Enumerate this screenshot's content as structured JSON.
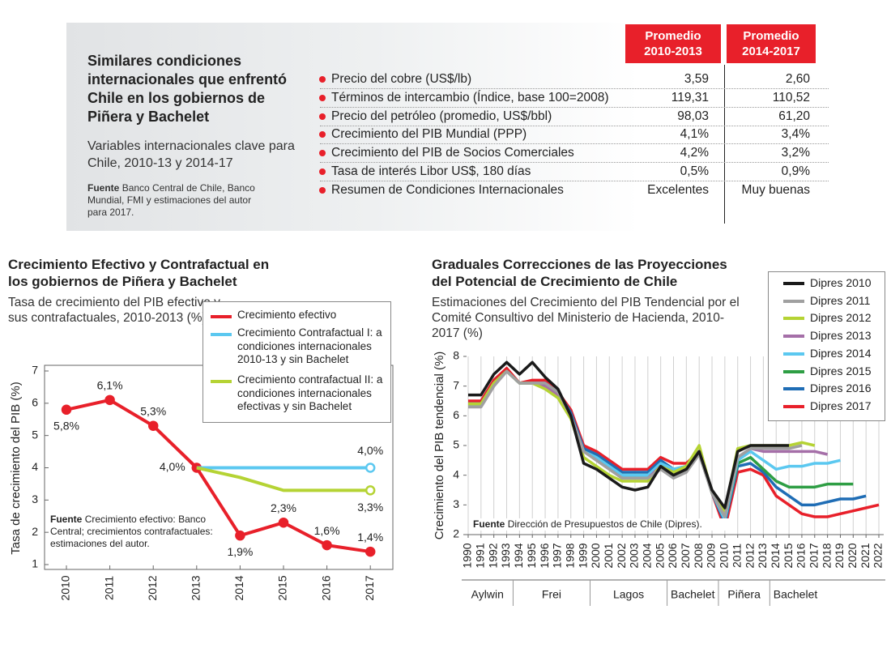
{
  "header": {
    "title": "Similares condiciones internacionales que enfrentó Chile en los gobiernos de Piñera y Bachelet",
    "subtitle": "Variables internacionales clave para Chile, 2010-13 y 2014-17",
    "source_label": "Fuente",
    "source": "Banco Central de Chile, Banco Mundial, FMI y estimaciones del autor para 2017."
  },
  "table": {
    "columns": [
      "Promedio 2010-2013",
      "Promedio 2014-2017"
    ],
    "rows": [
      [
        "Precio del cobre (US$/lb)",
        "3,59",
        "2,60"
      ],
      [
        "Términos de intercambio (Índice, base 100=2008)",
        "119,31",
        "110,52"
      ],
      [
        "Precio del petróleo (promedio, US$/bbl)",
        "98,03",
        "61,20"
      ],
      [
        "Crecimiento del PIB Mundial (PPP)",
        "4,1%",
        "3,4%"
      ],
      [
        "Crecimiento del PIB de Socios Comerciales",
        "4,2%",
        "3,2%"
      ],
      [
        "Tasa de interés Libor US$, 180 días",
        "0,5%",
        "0,9%"
      ],
      [
        "Resumen de Condiciones Internacionales",
        "Excelentes",
        "Muy buenas"
      ]
    ]
  },
  "chart_data": [
    {
      "type": "line",
      "title": "Crecimiento Efectivo y Contrafactual en los gobiernos de Piñera y Bachelet",
      "subtitle": "Tasa de crecimiento del PIB efectivo y sus contrafactuales, 2010-2013 (%)",
      "y_label": "Tasa de crecimiento del PIB (%)",
      "annotation_label": "Fuente",
      "annotation": "Crecimiento efectivo: Banco Central; crecimientos contrafactuales: estimaciones del autor.",
      "categories": [
        "2010",
        "2011",
        "2012",
        "2013",
        "2014",
        "2015",
        "2016",
        "2017"
      ],
      "ylim": [
        1,
        7
      ],
      "yticks": [
        1,
        2,
        3,
        4,
        5,
        6,
        7
      ],
      "grid": false,
      "series": [
        {
          "name": "Crecimiento efectivo",
          "color": "#e8202a",
          "marker": "all",
          "values": [
            5.8,
            6.1,
            5.3,
            4.0,
            1.9,
            2.3,
            1.6,
            1.4
          ],
          "value_labels": [
            "5,8%",
            "6,1%",
            "5,3%",
            "4,0%",
            "1,9%",
            "2,3%",
            "1,6%",
            "1,4%"
          ]
        },
        {
          "name": "Crecimiento Contrafactual I: a condiciones internacionales 2010-13 y sin Bachelet",
          "color": "#5bc8f0",
          "marker": "last",
          "values": [
            null,
            null,
            null,
            4.0,
            4.0,
            4.0,
            4.0,
            4.0
          ],
          "value_labels": [
            null,
            null,
            null,
            null,
            null,
            null,
            null,
            "4,0%"
          ]
        },
        {
          "name": "Crecimiento contrafactual II: a condiciones internacionales efectivas y sin Bachelet",
          "color": "#b5d334",
          "marker": "last",
          "values": [
            null,
            null,
            null,
            4.0,
            3.7,
            3.3,
            3.3,
            3.3
          ],
          "value_labels": [
            null,
            null,
            null,
            null,
            null,
            null,
            null,
            "3,3%"
          ]
        }
      ]
    },
    {
      "type": "line",
      "title": "Graduales Correcciones de las Proyecciones del Potencial de Crecimiento de Chile",
      "subtitle": "Estimaciones del Crecimiento del PIB Tendencial por el Comité Consultivo del Ministerio de Hacienda, 2010-2017 (%)",
      "y_label": "Crecimiento del PIB tendencial (%)",
      "annotation_label": "Fuente",
      "annotation": "Dirección de Presupuestos de Chile (Dipres).",
      "x": [
        1990,
        1991,
        1992,
        1993,
        1994,
        1995,
        1996,
        1997,
        1998,
        1999,
        2000,
        2001,
        2002,
        2003,
        2004,
        2005,
        2006,
        2007,
        2008,
        2009,
        2010,
        2011,
        2012,
        2013,
        2014,
        2015,
        2016,
        2017,
        2018,
        2019,
        2020,
        2021,
        2022
      ],
      "xlim": [
        1990,
        2022
      ],
      "xticks": [
        1990,
        1991,
        1992,
        1993,
        1994,
        1995,
        1996,
        1997,
        1998,
        1999,
        2000,
        2001,
        2002,
        2003,
        2004,
        2005,
        2006,
        2007,
        2008,
        2009,
        2010,
        2011,
        2012,
        2013,
        2014,
        2015,
        2016,
        2017,
        2018,
        2019,
        2020,
        2021,
        2022
      ],
      "ylim": [
        2,
        8
      ],
      "yticks": [
        2,
        3,
        4,
        5,
        6,
        7,
        8
      ],
      "grid": "x",
      "periods": [
        {
          "label": "Aylwin",
          "start": 1990,
          "end": 1993
        },
        {
          "label": "Frei",
          "start": 1994,
          "end": 1999
        },
        {
          "label": "Lagos",
          "start": 2000,
          "end": 2005
        },
        {
          "label": "Bachelet",
          "start": 2006,
          "end": 2009
        },
        {
          "label": "Piñera",
          "start": 2010,
          "end": 2013
        },
        {
          "label": "Bachelet",
          "start": 2014,
          "end": 2017
        }
      ],
      "series": [
        {
          "name": "Dipres 2010",
          "color": "#1a1a1a",
          "values": [
            6.7,
            6.7,
            7.4,
            7.8,
            7.4,
            7.8,
            7.3,
            6.9,
            6.0,
            4.4,
            4.2,
            3.9,
            3.6,
            3.5,
            3.6,
            4.3,
            4.0,
            4.2,
            4.8,
            3.5,
            2.9,
            4.8,
            5.0,
            5.0,
            5.0,
            5.0,
            null,
            null,
            null,
            null,
            null,
            null,
            null
          ]
        },
        {
          "name": "Dipres 2011",
          "color": "#a0a0a0",
          "values": [
            6.3,
            6.3,
            7.0,
            7.5,
            7.1,
            7.1,
            7.1,
            6.8,
            6.0,
            4.8,
            4.5,
            4.2,
            3.9,
            3.9,
            3.9,
            4.2,
            3.9,
            4.1,
            4.7,
            3.4,
            2.6,
            4.6,
            4.9,
            4.9,
            4.9,
            4.9,
            5.0,
            null,
            null,
            null,
            null,
            null,
            null
          ]
        },
        {
          "name": "Dipres 2012",
          "color": "#b5d334",
          "values": [
            6.4,
            6.4,
            7.1,
            7.5,
            7.1,
            7.1,
            6.9,
            6.6,
            5.9,
            4.6,
            4.3,
            4.0,
            3.8,
            3.8,
            3.8,
            4.3,
            4.1,
            4.3,
            5.0,
            3.4,
            2.8,
            4.9,
            5.0,
            5.0,
            5.0,
            5.0,
            5.1,
            5.0,
            null,
            null,
            null,
            null,
            null
          ]
        },
        {
          "name": "Dipres 2013",
          "color": "#a56fa8",
          "values": [
            6.3,
            6.3,
            7.0,
            7.5,
            7.1,
            7.1,
            7.0,
            6.7,
            6.0,
            4.8,
            4.5,
            4.2,
            3.9,
            3.9,
            3.9,
            4.3,
            4.1,
            4.2,
            4.8,
            3.4,
            2.6,
            4.6,
            4.9,
            4.8,
            4.8,
            4.8,
            4.8,
            4.8,
            4.7,
            null,
            null,
            null,
            null
          ]
        },
        {
          "name": "Dipres 2014",
          "color": "#5bc8f0",
          "values": [
            6.4,
            6.4,
            7.1,
            7.5,
            7.1,
            7.1,
            7.0,
            6.7,
            6.0,
            4.8,
            4.6,
            4.3,
            4.0,
            4.0,
            4.0,
            4.4,
            4.2,
            4.3,
            4.8,
            3.4,
            2.5,
            4.5,
            4.8,
            4.5,
            4.2,
            4.3,
            4.3,
            4.4,
            4.4,
            4.5,
            null,
            null,
            null
          ]
        },
        {
          "name": "Dipres 2015",
          "color": "#2e9e44",
          "values": [
            6.4,
            6.4,
            7.1,
            7.5,
            7.1,
            7.1,
            7.0,
            6.7,
            6.0,
            4.8,
            4.6,
            4.3,
            4.0,
            4.0,
            4.0,
            4.4,
            4.2,
            4.3,
            4.8,
            3.4,
            2.5,
            4.4,
            4.6,
            4.2,
            3.8,
            3.6,
            3.6,
            3.6,
            3.7,
            3.7,
            3.7,
            null,
            null
          ]
        },
        {
          "name": "Dipres 2016",
          "color": "#1f6db5",
          "values": [
            6.4,
            6.4,
            7.1,
            7.5,
            7.1,
            7.1,
            7.1,
            6.8,
            6.1,
            4.9,
            4.7,
            4.4,
            4.1,
            4.1,
            4.1,
            4.5,
            4.2,
            4.3,
            4.8,
            3.4,
            2.4,
            4.3,
            4.4,
            4.1,
            3.6,
            3.3,
            3.0,
            3.0,
            3.1,
            3.2,
            3.2,
            3.3,
            null
          ]
        },
        {
          "name": "Dipres 2017",
          "color": "#e8202a",
          "values": [
            6.5,
            6.5,
            7.2,
            7.6,
            7.1,
            7.2,
            7.2,
            6.8,
            6.2,
            5.0,
            4.8,
            4.5,
            4.2,
            4.2,
            4.2,
            4.6,
            4.4,
            4.4,
            4.8,
            3.4,
            2.2,
            4.1,
            4.2,
            4.0,
            3.3,
            3.0,
            2.7,
            2.6,
            2.6,
            2.7,
            2.8,
            2.9,
            3.0
          ]
        }
      ]
    }
  ]
}
